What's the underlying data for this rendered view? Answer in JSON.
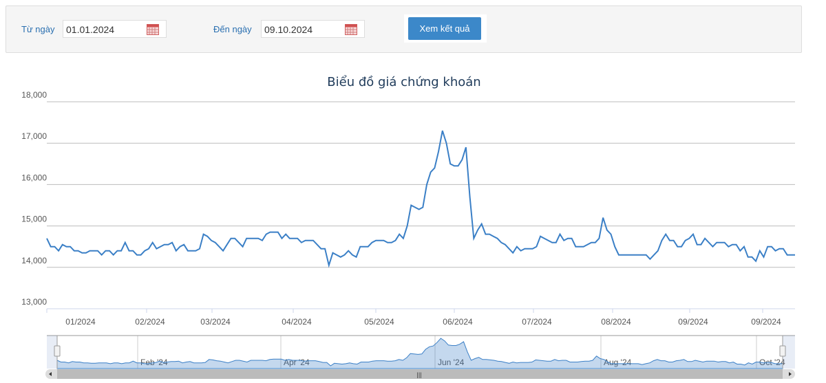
{
  "form": {
    "from_label": "Từ ngày",
    "from_value": "01.01.2024",
    "to_label": "Đến ngày",
    "to_value": "09.10.2024",
    "button": "Xem kết quả"
  },
  "chart_data": {
    "type": "line",
    "title": "Biểu đồ giá chứng khoán",
    "x_labels": [
      "01/2024",
      "02/2024",
      "03/2024",
      "04/2024",
      "05/2024",
      "06/2024",
      "07/2024",
      "08/2024",
      "09/2024",
      "09/2024"
    ],
    "navigator_labels": [
      "Feb '24",
      "Apr '24",
      "Jun '24",
      "Aug '24",
      "Oct '24"
    ],
    "color": "#3a7fc6",
    "ylim": [
      13000,
      18000
    ],
    "yticks": [
      {
        "value": 13000,
        "label": "13,000"
      },
      {
        "value": 14000,
        "label": "14,000"
      },
      {
        "value": 15000,
        "label": "15,000"
      },
      {
        "value": 16000,
        "label": "16,000"
      },
      {
        "value": 17000,
        "label": "17,000"
      },
      {
        "value": 18000,
        "label": "18,000"
      }
    ],
    "grid": true,
    "values": [
      14700,
      14500,
      14500,
      14400,
      14550,
      14500,
      14500,
      14400,
      14400,
      14350,
      14350,
      14400,
      14400,
      14400,
      14300,
      14400,
      14400,
      14300,
      14400,
      14400,
      14600,
      14400,
      14400,
      14300,
      14300,
      14400,
      14450,
      14600,
      14450,
      14500,
      14550,
      14550,
      14600,
      14400,
      14500,
      14550,
      14400,
      14400,
      14400,
      14450,
      14800,
      14750,
      14650,
      14600,
      14500,
      14400,
      14550,
      14700,
      14700,
      14600,
      14500,
      14700,
      14700,
      14700,
      14700,
      14650,
      14800,
      14850,
      14850,
      14850,
      14700,
      14800,
      14700,
      14700,
      14700,
      14600,
      14650,
      14650,
      14650,
      14550,
      14450,
      14450,
      14050,
      14350,
      14300,
      14250,
      14300,
      14400,
      14300,
      14250,
      14500,
      14500,
      14500,
      14600,
      14650,
      14650,
      14650,
      14600,
      14600,
      14650,
      14800,
      14700,
      15000,
      15500,
      15450,
      15400,
      15450,
      16000,
      16300,
      16400,
      16800,
      17300,
      17000,
      16500,
      16450,
      16450,
      16600,
      16900,
      15700,
      14700,
      14900,
      15050,
      14800,
      14800,
      14750,
      14700,
      14600,
      14550,
      14450,
      14350,
      14500,
      14400,
      14450,
      14450,
      14450,
      14500,
      14750,
      14700,
      14650,
      14600,
      14600,
      14800,
      14650,
      14700,
      14700,
      14500,
      14500,
      14500,
      14550,
      14600,
      14600,
      14700,
      15200,
      14900,
      14800,
      14500,
      14300,
      14300,
      14300,
      14300,
      14300,
      14300,
      14300,
      14300,
      14200,
      14300,
      14400,
      14650,
      14800,
      14650,
      14650,
      14500,
      14500,
      14650,
      14700,
      14800,
      14550,
      14550,
      14700,
      14600,
      14500,
      14600,
      14600,
      14600,
      14500,
      14550,
      14550,
      14400,
      14500,
      14250,
      14250,
      14150,
      14400,
      14250,
      14500,
      14500,
      14400,
      14450,
      14450,
      14300,
      14300,
      14300
    ]
  }
}
